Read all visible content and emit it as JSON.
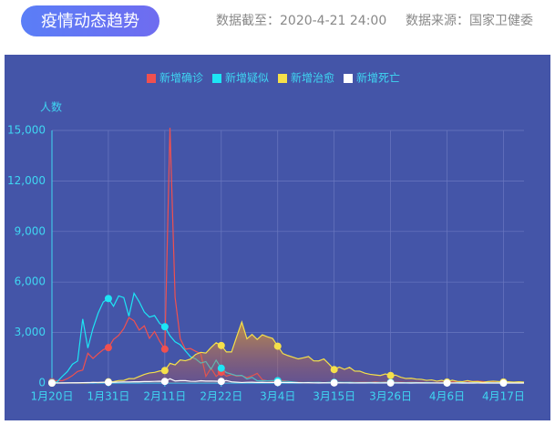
{
  "header": {
    "title": "疫情动态趋势",
    "updated": "数据截至：2020-4-21 24:00",
    "source": "数据来源：国家卫健委"
  },
  "chart_data": {
    "type": "line",
    "y_label": "人数",
    "categories": [
      "1月20日",
      null,
      null,
      null,
      null,
      null,
      null,
      null,
      null,
      null,
      null,
      "1月31日",
      null,
      null,
      null,
      null,
      null,
      null,
      null,
      null,
      null,
      null,
      "2月11日",
      null,
      null,
      null,
      null,
      null,
      null,
      null,
      null,
      null,
      null,
      "2月22日",
      null,
      null,
      null,
      null,
      null,
      null,
      null,
      null,
      null,
      null,
      "3月4日",
      null,
      null,
      null,
      null,
      null,
      null,
      null,
      null,
      null,
      null,
      "3月15日",
      null,
      null,
      null,
      null,
      null,
      null,
      null,
      null,
      null,
      null,
      "3月26日",
      null,
      null,
      null,
      null,
      null,
      null,
      null,
      null,
      null,
      null,
      "4月6日",
      null,
      null,
      null,
      null,
      null,
      null,
      null,
      null,
      null,
      null,
      "4月17日",
      null,
      null,
      null,
      null
    ],
    "series": [
      {
        "name": "新增确诊",
        "color": "#f0504f",
        "values": [
          77,
          149,
          131,
          259,
          444,
          688,
          769,
          1771,
          1459,
          1737,
          1982,
          2102,
          2590,
          2829,
          3235,
          3887,
          3694,
          3143,
          3399,
          2656,
          3062,
          2478,
          2015,
          15152,
          5090,
          2641,
          2009,
          2048,
          1886,
          1749,
          394,
          889,
          397,
          648,
          409,
          508,
          406,
          433,
          327,
          427,
          573,
          202,
          125,
          119,
          139,
          143,
          99,
          44,
          40,
          19,
          24,
          15,
          8,
          11,
          20,
          16,
          21,
          13,
          34,
          39,
          41,
          46,
          39,
          78,
          47,
          67,
          55,
          54,
          45,
          31,
          48,
          36,
          35,
          31,
          19,
          30,
          39,
          32,
          62,
          63,
          42,
          46,
          99,
          108,
          89,
          46,
          46,
          26,
          27,
          16,
          12,
          11,
          30
        ]
      },
      {
        "name": "新增疑似",
        "color": "#1de5f5",
        "values": [
          27,
          65,
          393,
          680,
          1118,
          1309,
          3806,
          2077,
          3248,
          4148,
          4812,
          5019,
          4562,
          5173,
          5072,
          3971,
          5328,
          4833,
          4214,
          3916,
          4008,
          3536,
          3342,
          2807,
          2450,
          2277,
          1918,
          1563,
          1432,
          1185,
          1277,
          820,
          1361,
          882,
          620,
          530,
          439,
          452,
          248,
          335,
          132,
          141,
          129,
          143,
          143,
          102,
          99,
          60,
          36,
          31,
          33,
          33,
          45,
          17,
          39,
          41,
          45,
          35,
          41,
          31,
          27,
          26,
          33,
          37,
          32,
          39,
          40,
          33,
          22,
          23,
          30,
          27,
          18,
          26,
          18,
          6,
          14,
          12,
          11,
          20,
          22,
          17,
          11,
          14,
          10,
          20,
          12,
          12,
          10,
          8,
          10,
          9,
          12
        ]
      },
      {
        "name": "新增治愈",
        "color": "#f5e04a",
        "area": true,
        "values": [
          0,
          0,
          0,
          6,
          3,
          11,
          2,
          9,
          43,
          21,
          47,
          72,
          85,
          147,
          157,
          262,
          261,
          387,
          510,
          600,
          632,
          716,
          744,
          1171,
          1081,
          1373,
          1323,
          1425,
          1701,
          1824,
          1779,
          2109,
          2394,
          2230,
          1846,
          1846,
          2750,
          3622,
          2626,
          2885,
          2589,
          2867,
          2742,
          2652,
          2189,
          1750,
          1631,
          1535,
          1434,
          1500,
          1578,
          1318,
          1315,
          1430,
          1127,
          800,
          943,
          812,
          930,
          706,
          705,
          587,
          519,
          480,
          447,
          541,
          449,
          468,
          342,
          269,
          283,
          233,
          221,
          160,
          187,
          111,
          160,
          58,
          169,
          97,
          81,
          144,
          83,
          88,
          43,
          89,
          112,
          87,
          63,
          75,
          58,
          73,
          54
        ]
      },
      {
        "name": "新增死亡",
        "color": "#ffffff",
        "values": [
          0,
          3,
          8,
          8,
          16,
          15,
          24,
          26,
          26,
          38,
          43,
          46,
          45,
          57,
          64,
          65,
          73,
          73,
          86,
          89,
          97,
          108,
          97,
          254,
          121,
          143,
          142,
          105,
          98,
          136,
          114,
          118,
          109,
          97,
          150,
          71,
          52,
          29,
          44,
          47,
          35,
          42,
          31,
          38,
          31,
          30,
          28,
          27,
          22,
          17,
          22,
          11,
          7,
          13,
          10,
          14,
          13,
          11,
          8,
          3,
          7,
          6,
          9,
          7,
          4,
          6,
          5,
          3,
          5,
          4,
          1,
          7,
          6,
          4,
          4,
          3,
          1,
          2,
          2,
          2,
          0,
          0,
          1,
          2,
          1,
          1,
          0,
          0,
          0,
          0,
          0,
          0,
          0
        ]
      }
    ],
    "ylim": [
      0,
      15000
    ],
    "yticks": [
      0,
      {
        "value": 3000,
        "label": "3,000"
      },
      {
        "value": 6000,
        "label": "6,000"
      },
      {
        "value": 9000,
        "label": "9,000"
      },
      {
        "value": 12000,
        "label": "12,000"
      },
      {
        "value": 15000,
        "label": "15,000"
      }
    ],
    "grid": true,
    "legend": "top"
  }
}
